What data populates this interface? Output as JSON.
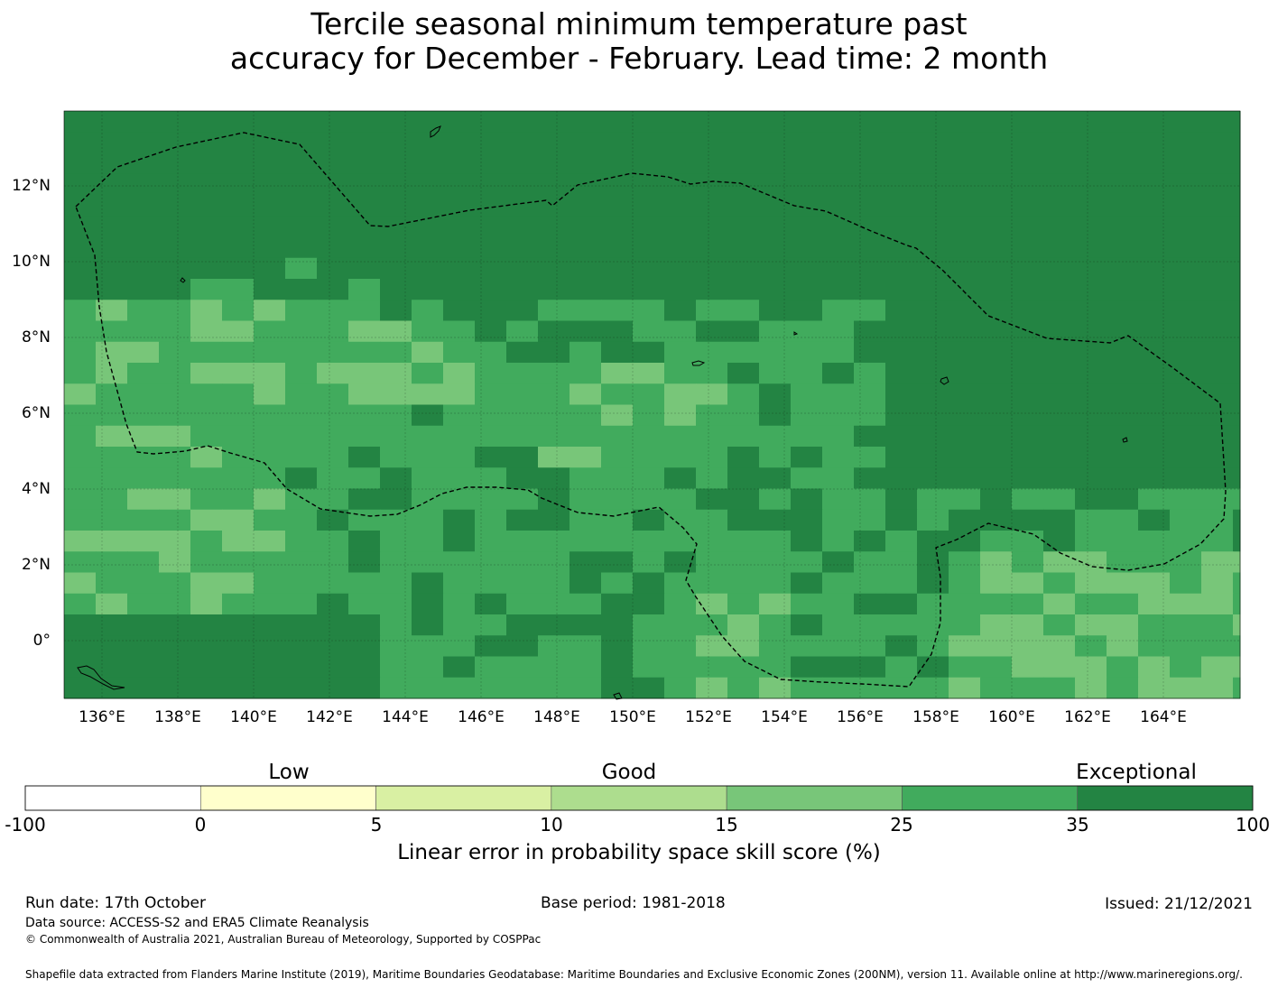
{
  "title": {
    "line1": "Tercile seasonal minimum temperature past",
    "line2": "accuracy for December - February. Lead time: 2 month"
  },
  "map": {
    "lon_range": [
      135.0,
      166.0
    ],
    "lat_range": [
      -1.5,
      14.0
    ],
    "grid_spacing_deg": 0.833,
    "x_ticks": [
      "136°E",
      "138°E",
      "140°E",
      "142°E",
      "144°E",
      "146°E",
      "148°E",
      "150°E",
      "152°E",
      "154°E",
      "156°E",
      "158°E",
      "160°E",
      "162°E",
      "164°E"
    ],
    "y_ticks": [
      "12°N",
      "10°N",
      "8°N",
      "6°N",
      "4°N",
      "2°N",
      "0°"
    ],
    "boundary": "Exclusive Economic Zone (dashed)"
  },
  "colorbar": {
    "categories": [
      "Low",
      "Good",
      "Exceptional"
    ],
    "ticks": [
      "-100",
      "0",
      "5",
      "10",
      "15",
      "25",
      "35",
      "100"
    ],
    "colors": [
      "#ffffff",
      "#ffffcc",
      "#d9f0a3",
      "#addd8e",
      "#78c679",
      "#41ab5d",
      "#238443"
    ],
    "label": "Linear error in probability space skill score (%)"
  },
  "footer": {
    "run_date": "Run date: 17th October",
    "base_period": "Base period: 1981-2018",
    "issued": "Issued: 21/12/2021",
    "data_source": "Data source: ACCESS-S2 and ERA5 Climate Reanalysis",
    "copyright": "© Commonwealth of Australia 2021, Australian Bureau of Meteorology, Supported by COSPPac",
    "shapefile": "Shapefile data extracted from Flanders Marine Institute (2019), Maritime Boundaries Geodatabase: Maritime Boundaries and Exclusive Economic Zones (200NM), version 11. Available online at http://www.marineregions.org/."
  }
}
